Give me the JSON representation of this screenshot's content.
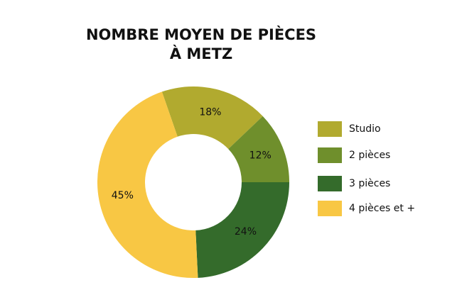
{
  "chart_data": {
    "type": "donut",
    "title": [
      "NOMBRE MOYEN DE PIÈCES",
      "À METZ"
    ],
    "categories": [
      "Studio",
      "2 pièces",
      "3 pièces",
      "4 pièces et +"
    ],
    "values": [
      18,
      12,
      24,
      45
    ],
    "value_labels": [
      "18%",
      "12%",
      "24%",
      "45%"
    ],
    "colors": [
      "#b1aa2f",
      "#6f8f2c",
      "#346b2b",
      "#f8c744"
    ],
    "legend": "right"
  }
}
